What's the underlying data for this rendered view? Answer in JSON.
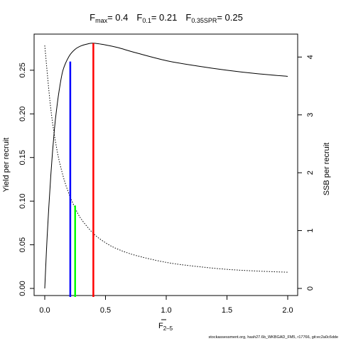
{
  "chart_data": {
    "type": "line",
    "title_parts": [
      {
        "main": "F",
        "sub": "max",
        "value": "= 0.4"
      },
      {
        "main": "F",
        "sub": "0.1",
        "value": "= 0.21"
      },
      {
        "main": "F",
        "sub": "0.35SPR",
        "value": "= 0.25"
      }
    ],
    "xlabel": {
      "main": "F",
      "sub": "2–5"
    },
    "ylabel_left": "Yield per recruit",
    "ylabel_right": "SSB per recruit",
    "footnote": "stockassessment.org, hash27.6b_WKBGAD_FM5, r17766, git:ec2a0c6dde",
    "x_ticks": [
      "0.0",
      "0.5",
      "1.0",
      "1.5",
      "2.0"
    ],
    "y_left_ticks": [
      "0.00",
      "0.05",
      "0.10",
      "0.15",
      "0.20",
      "0.25"
    ],
    "y_right_ticks": [
      "0",
      "1",
      "2",
      "3",
      "4"
    ],
    "xlim": [
      0,
      2
    ],
    "ylim_left": [
      0,
      0.28
    ],
    "ylim_right": [
      0,
      4.2
    ],
    "series": [
      {
        "axis": "left",
        "style": "solid",
        "color": "#000000",
        "x": [
          0,
          0.02,
          0.05,
          0.08,
          0.1,
          0.12,
          0.15,
          0.2,
          0.25,
          0.3,
          0.35,
          0.4,
          0.5,
          0.6,
          0.75,
          1.0,
          1.25,
          1.5,
          1.75,
          2.0
        ],
        "values": [
          0.0,
          0.06,
          0.13,
          0.183,
          0.208,
          0.228,
          0.25,
          0.266,
          0.274,
          0.278,
          0.28,
          0.281,
          0.279,
          0.276,
          0.27,
          0.261,
          0.255,
          0.25,
          0.246,
          0.243
        ]
      },
      {
        "axis": "right",
        "style": "dotted",
        "color": "#000000",
        "x": [
          0,
          0.05,
          0.1,
          0.15,
          0.2,
          0.25,
          0.3,
          0.4,
          0.5,
          0.6,
          0.75,
          1.0,
          1.25,
          1.5,
          1.75,
          2.0
        ],
        "values": [
          4.2,
          3.1,
          2.4,
          1.95,
          1.63,
          1.39,
          1.2,
          0.95,
          0.79,
          0.68,
          0.57,
          0.45,
          0.38,
          0.33,
          0.3,
          0.28
        ]
      }
    ],
    "reference_lines": [
      {
        "name": "F0.1",
        "x": 0.21,
        "y": 0.26,
        "color": "#0000ff"
      },
      {
        "name": "F0.35SPR",
        "x": 0.25,
        "y": 0.095,
        "color": "#00ff00"
      },
      {
        "name": "Fmax",
        "x": 0.4,
        "y": 0.281,
        "color": "#ff0000"
      }
    ]
  }
}
